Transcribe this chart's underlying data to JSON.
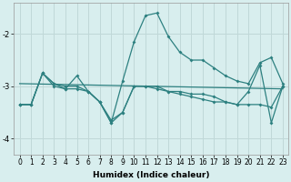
{
  "xlabel": "Humidex (Indice chaleur)",
  "bg_color": "#d8eeee",
  "grid_color": "#c0d8d8",
  "line_color": "#2d8080",
  "xlim": [
    -0.5,
    23.5
  ],
  "ylim": [
    -4.3,
    -1.4
  ],
  "yticks": [
    -4,
    -3,
    -2
  ],
  "xticks": [
    0,
    1,
    2,
    3,
    4,
    5,
    6,
    7,
    8,
    9,
    10,
    11,
    12,
    13,
    14,
    15,
    16,
    17,
    18,
    19,
    20,
    21,
    22,
    23
  ],
  "series1_x": [
    0,
    1,
    2,
    3,
    4,
    5,
    6,
    7,
    8,
    9,
    10,
    11,
    12,
    13,
    14,
    15,
    16,
    17,
    18,
    19,
    20,
    21,
    22,
    23
  ],
  "series1_y": [
    -3.35,
    -3.35,
    -2.75,
    -2.95,
    -3.0,
    -3.0,
    -3.1,
    -3.3,
    -3.7,
    -2.9,
    -2.15,
    -1.65,
    -1.6,
    -2.05,
    -2.35,
    -2.5,
    -2.5,
    -2.65,
    -2.8,
    -2.9,
    -2.95,
    -2.55,
    -2.45,
    -2.95
  ],
  "series2_x": [
    0,
    1,
    2,
    3,
    4,
    5,
    6,
    7,
    8,
    9,
    10,
    11,
    12,
    13,
    14,
    15,
    16,
    17,
    18,
    19,
    20,
    21,
    22,
    23
  ],
  "series2_y": [
    -3.35,
    -3.35,
    -2.75,
    -2.95,
    -3.05,
    -3.05,
    -3.1,
    -3.3,
    -3.7,
    -3.5,
    -3.0,
    -3.0,
    -3.05,
    -3.1,
    -3.15,
    -3.2,
    -3.25,
    -3.3,
    -3.3,
    -3.35,
    -3.35,
    -3.35,
    -3.4,
    -3.0
  ],
  "series3_x": [
    0,
    23
  ],
  "series3_y": [
    -2.95,
    -3.05
  ],
  "series4_x": [
    0,
    1,
    2,
    3,
    4,
    5,
    6,
    7,
    8,
    9,
    10,
    11,
    12,
    13,
    14,
    15,
    16,
    17,
    18,
    19,
    20,
    21,
    22,
    23
  ],
  "series4_y": [
    -3.35,
    -3.35,
    -2.75,
    -3.0,
    -3.05,
    -2.8,
    -3.1,
    -3.3,
    -3.65,
    -3.5,
    -3.0,
    -3.0,
    -3.0,
    -3.1,
    -3.1,
    -3.15,
    -3.15,
    -3.2,
    -3.3,
    -3.35,
    -3.1,
    -2.6,
    -3.7,
    -3.0
  ],
  "tick_fontsize": 5.5,
  "xlabel_fontsize": 6.5
}
